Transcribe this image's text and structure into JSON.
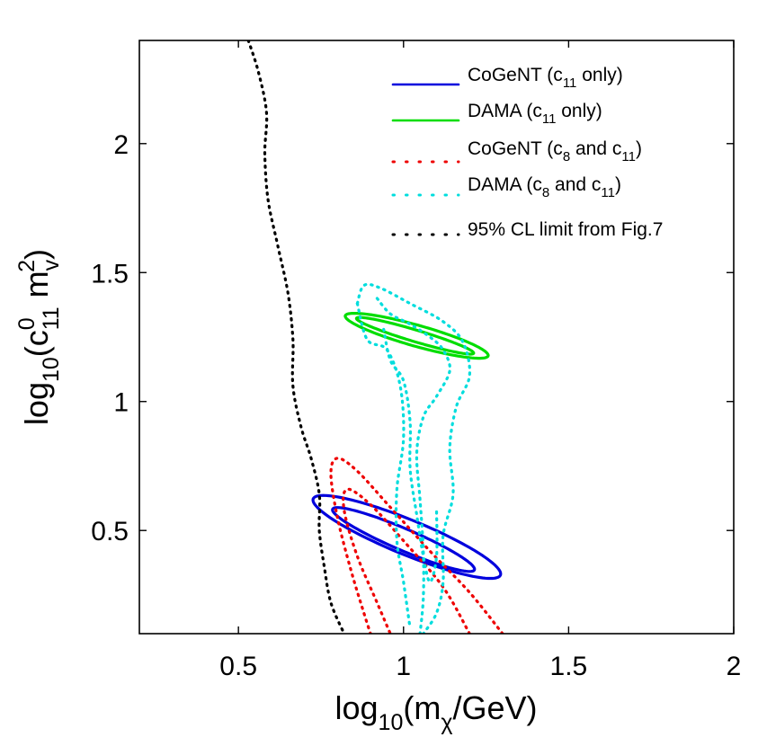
{
  "chart_data": {
    "type": "line",
    "title": "",
    "xlabel": "log10(mχ/GeV)",
    "ylabel": "log10(c0_11 mv^2)",
    "xlabel_parts": {
      "base": "log",
      "sub": "10",
      "open": "(m",
      "sub2": "χ",
      "rest": "/GeV)"
    },
    "ylabel_parts": {
      "base": "log",
      "sub": "10",
      "open": "(c",
      "sup0": "0",
      "sub11": "11",
      "mid": " m",
      "subv": "v",
      "sup2": "2",
      "close": ")"
    },
    "xlim": [
      0.2,
      2.0
    ],
    "ylim": [
      0.1,
      2.4
    ],
    "xticks": [
      0.5,
      1,
      1.5,
      2
    ],
    "xtick_labels": [
      "0.5",
      "1",
      "1.5",
      "2"
    ],
    "yticks": [
      0.5,
      1,
      1.5,
      2
    ],
    "ytick_labels": [
      "0.5",
      "1",
      "1.5",
      "2"
    ],
    "grid": false,
    "legend_position": "top-right",
    "legend": [
      {
        "id": "cogent_c11",
        "pre": "CoGeNT (c",
        "sub1": "11",
        "mid": " only)",
        "sub2": "",
        "post": ""
      },
      {
        "id": "dama_c11",
        "pre": "DAMA (c",
        "sub1": "11",
        "mid": " only)",
        "sub2": "",
        "post": ""
      },
      {
        "id": "cogent_c8c11",
        "pre": "CoGeNT (c",
        "sub1": "8",
        "mid": " and c",
        "sub2": "11",
        "post": ")"
      },
      {
        "id": "dama_c8c11",
        "pre": "DAMA (c",
        "sub1": "8",
        "mid": " and c",
        "sub2": "11",
        "post": ")"
      },
      {
        "id": "cl_limit",
        "pre": "95% CL limit from Fig.7",
        "sub1": "",
        "mid": "",
        "sub2": "",
        "post": ""
      }
    ],
    "series": [
      {
        "id": "cogent_c11",
        "name": "CoGeNT (c11 only)",
        "color": "#0000dd",
        "style": "solid",
        "ellipses": [
          {
            "cx": 1.01,
            "cy": 0.475,
            "a": 0.32,
            "b": 0.065,
            "angle_deg": -28
          },
          {
            "cx": 1.0,
            "cy": 0.465,
            "a": 0.245,
            "b": 0.04,
            "angle_deg": -29
          }
        ]
      },
      {
        "id": "dama_c11",
        "name": "DAMA (c11 only)",
        "color": "#00dd00",
        "style": "solid",
        "ellipses": [
          {
            "cx": 1.04,
            "cy": 1.255,
            "a": 0.23,
            "b": 0.04,
            "angle_deg": -20
          },
          {
            "cx": 1.035,
            "cy": 1.255,
            "a": 0.19,
            "b": 0.022,
            "angle_deg": -21
          }
        ]
      },
      {
        "id": "cogent_c8c11",
        "name": "CoGeNT (c8 and c11)",
        "color": "#ee0000",
        "style": "dotted",
        "curves": [
          [
            [
              1.3,
              0.1
            ],
            [
              1.2,
              0.26
            ],
            [
              1.08,
              0.42
            ],
            [
              0.96,
              0.59
            ],
            [
              0.86,
              0.73
            ],
            [
              0.8,
              0.78
            ],
            [
              0.78,
              0.72
            ],
            [
              0.8,
              0.55
            ],
            [
              0.84,
              0.35
            ],
            [
              0.88,
              0.18
            ],
            [
              0.9,
              0.1
            ]
          ],
          [
            [
              1.2,
              0.1
            ],
            [
              1.12,
              0.28
            ],
            [
              1.0,
              0.46
            ],
            [
              0.9,
              0.6
            ],
            [
              0.83,
              0.66
            ],
            [
              0.82,
              0.58
            ],
            [
              0.86,
              0.4
            ],
            [
              0.92,
              0.22
            ],
            [
              0.96,
              0.1
            ]
          ]
        ]
      },
      {
        "id": "dama_c8c11",
        "name": "DAMA (c8 and c11)",
        "color": "#00dddd",
        "style": "dotted",
        "curves": [
          [
            [
              0.86,
              1.38
            ],
            [
              0.88,
              1.45
            ],
            [
              0.93,
              1.44
            ],
            [
              1.02,
              1.38
            ],
            [
              1.12,
              1.31
            ],
            [
              1.18,
              1.23
            ],
            [
              1.2,
              1.1
            ],
            [
              1.16,
              0.98
            ],
            [
              1.14,
              0.82
            ],
            [
              1.15,
              0.64
            ],
            [
              1.12,
              0.48
            ],
            [
              1.12,
              0.3
            ],
            [
              1.1,
              0.18
            ],
            [
              1.06,
              0.1
            ]
          ],
          [
            [
              0.86,
              1.38
            ],
            [
              0.89,
              1.24
            ],
            [
              0.95,
              1.2
            ],
            [
              0.99,
              1.06
            ],
            [
              1.0,
              0.86
            ],
            [
              0.98,
              0.66
            ],
            [
              0.98,
              0.46
            ],
            [
              1.0,
              0.3
            ],
            [
              1.02,
              0.12
            ]
          ],
          [
            [
              0.92,
              1.4
            ],
            [
              0.96,
              1.34
            ],
            [
              1.02,
              1.3
            ],
            [
              1.08,
              1.25
            ],
            [
              1.12,
              1.2
            ],
            [
              1.14,
              1.12
            ],
            [
              1.1,
              1.02
            ],
            [
              1.06,
              0.94
            ],
            [
              1.04,
              0.8
            ],
            [
              1.05,
              0.62
            ],
            [
              1.06,
              0.42
            ],
            [
              1.06,
              0.24
            ],
            [
              1.05,
              0.1
            ]
          ],
          [
            [
              0.94,
              1.28
            ],
            [
              0.96,
              1.16
            ],
            [
              1.0,
              1.08
            ],
            [
              1.02,
              0.92
            ],
            [
              1.02,
              0.74
            ],
            [
              1.04,
              0.56
            ],
            [
              1.06,
              0.4
            ],
            [
              1.08,
              0.3
            ],
            [
              1.1,
              0.4
            ],
            [
              1.1,
              0.58
            ]
          ]
        ]
      },
      {
        "id": "cl_limit",
        "name": "95% CL limit from Fig.7",
        "color": "#000000",
        "style": "dotted",
        "curves": [
          [
            [
              0.53,
              2.4
            ],
            [
              0.56,
              2.28
            ],
            [
              0.585,
              2.12
            ],
            [
              0.58,
              1.96
            ],
            [
              0.59,
              1.78
            ],
            [
              0.62,
              1.6
            ],
            [
              0.65,
              1.42
            ],
            [
              0.665,
              1.24
            ],
            [
              0.665,
              1.06
            ],
            [
              0.69,
              0.9
            ],
            [
              0.72,
              0.78
            ],
            [
              0.745,
              0.64
            ],
            [
              0.745,
              0.5
            ],
            [
              0.76,
              0.36
            ],
            [
              0.78,
              0.22
            ],
            [
              0.82,
              0.1
            ]
          ]
        ]
      }
    ]
  }
}
